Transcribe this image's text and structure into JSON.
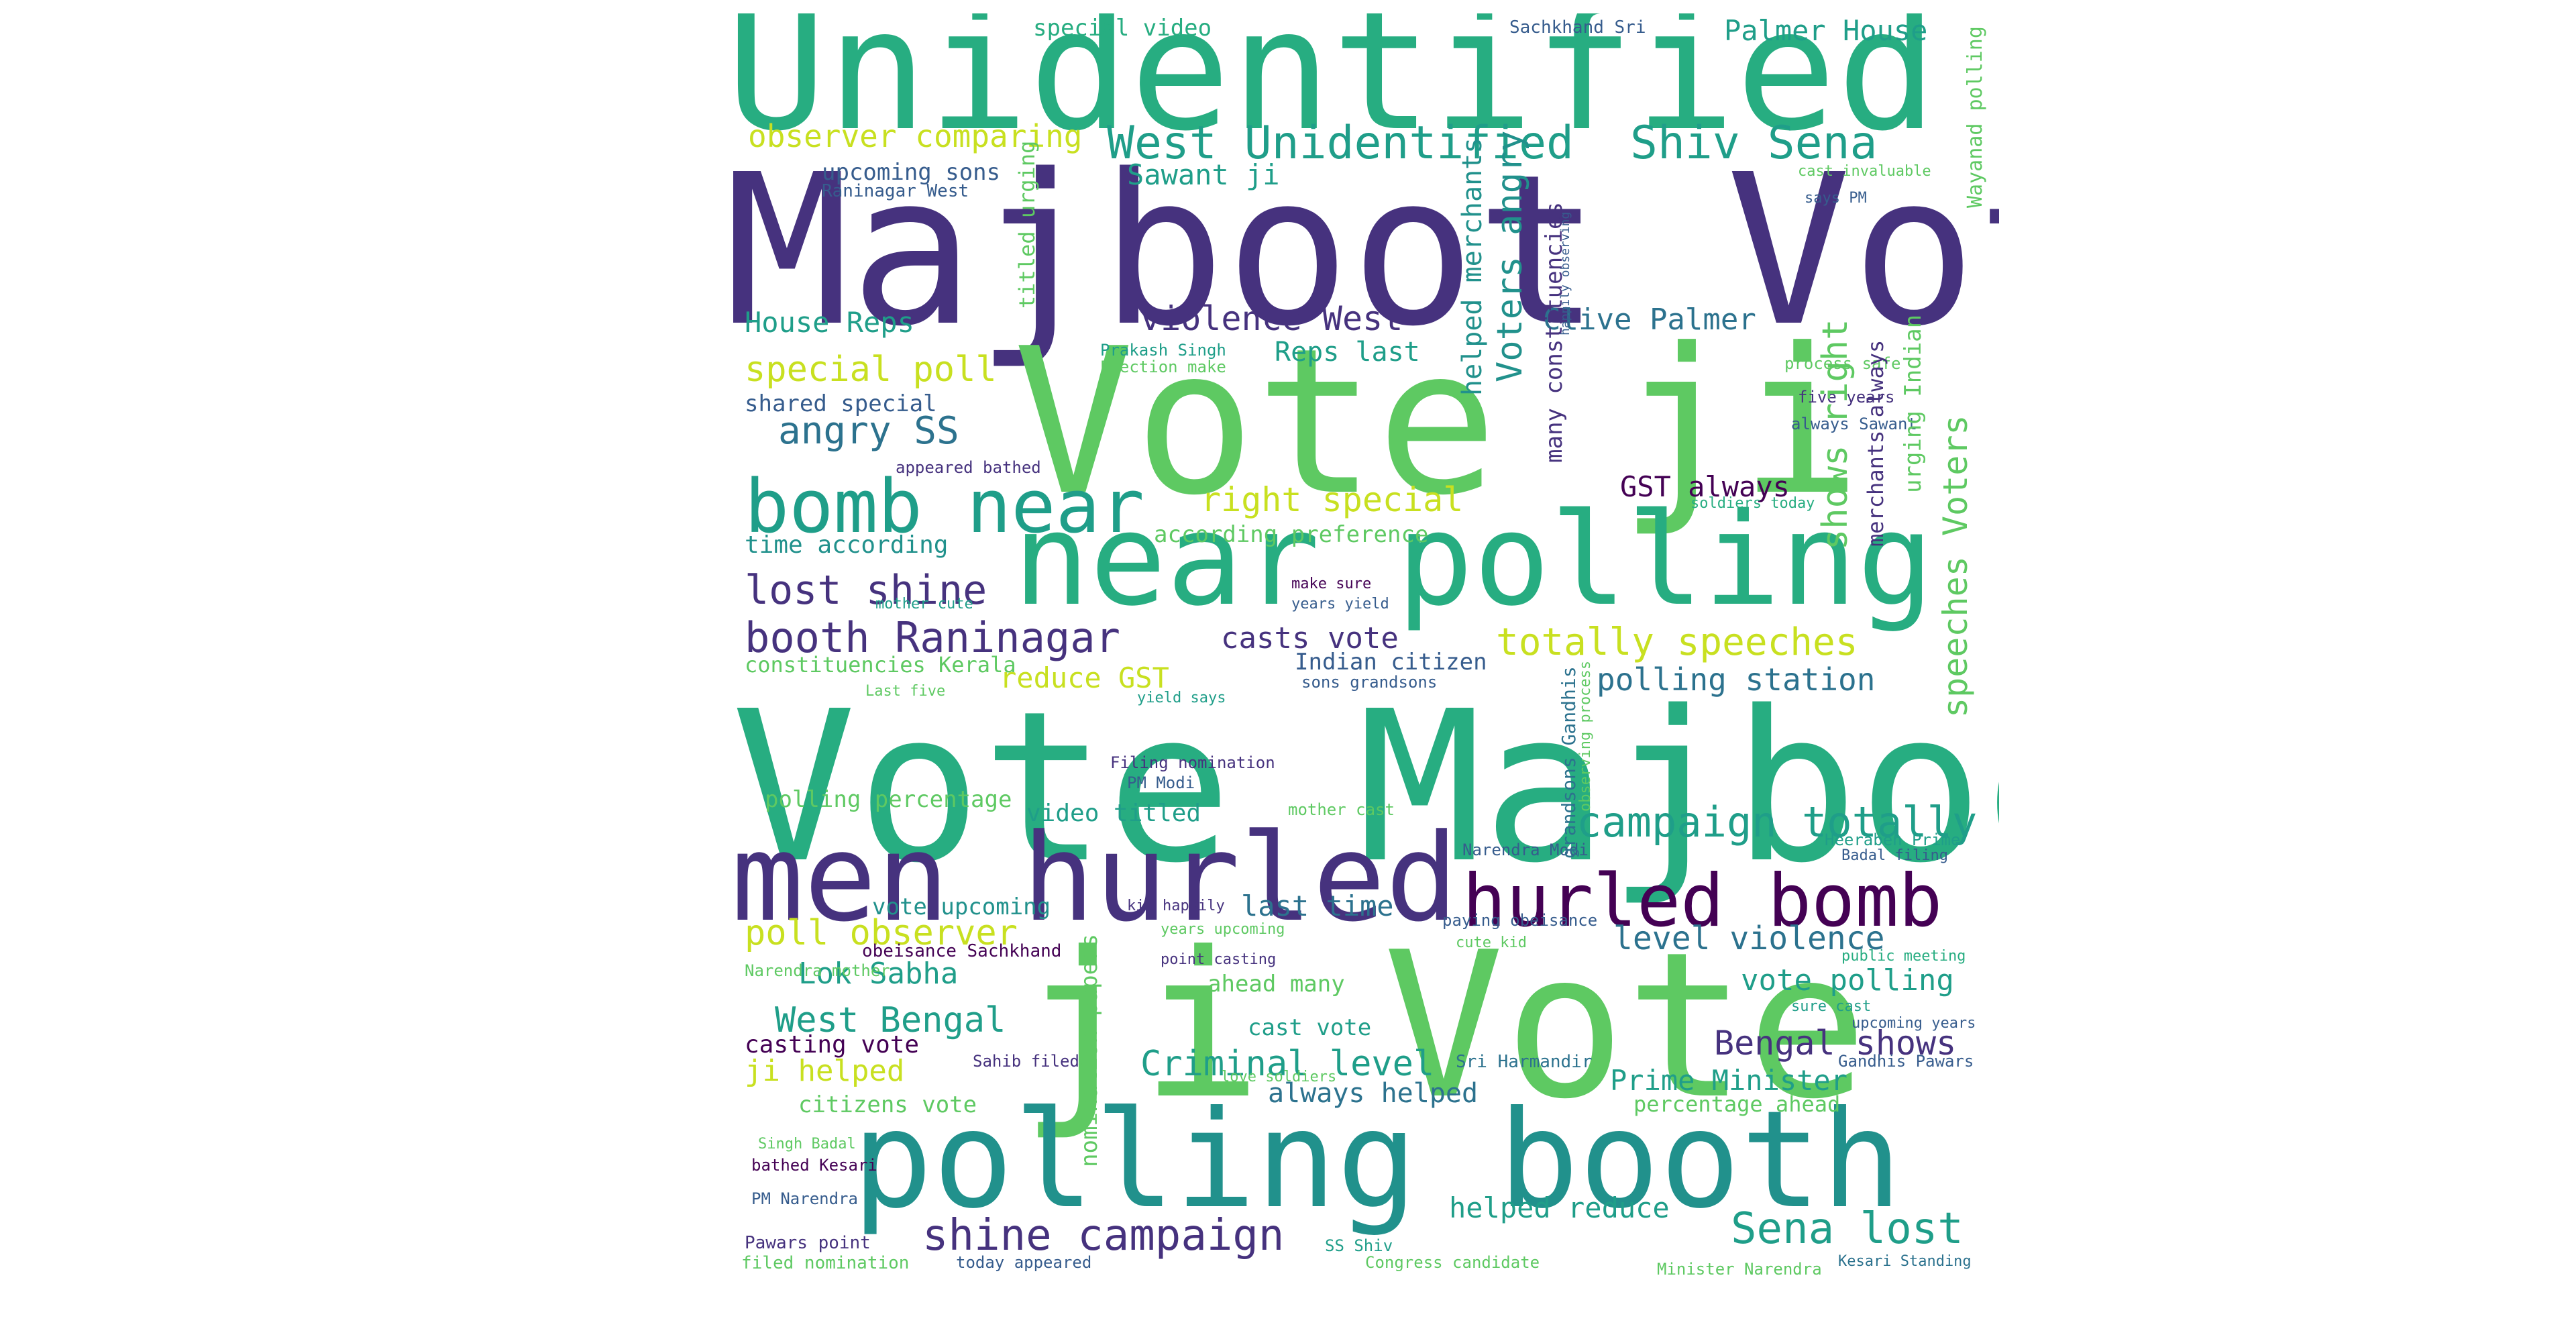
{
  "colors": {
    "dark_purple": "#46327e",
    "deep_purple": "#440154",
    "indigo": "#3b528b",
    "blue": "#365c8d",
    "teal_blue": "#2c728e",
    "teal": "#21918c",
    "sea_green": "#1f9e89",
    "green": "#27ad81",
    "light_green": "#5ec962",
    "lime": "#addc30",
    "yellow_green": "#c8e020"
  },
  "words": [
    {
      "text": "Unidentified men"
    },
    {
      "text": "Majboot Vote"
    },
    {
      "text": "Vote ji"
    },
    {
      "text": "near polling"
    },
    {
      "text": "Vote Majboot"
    },
    {
      "text": "men hurled"
    },
    {
      "text": "ji Vote"
    },
    {
      "text": "polling booth"
    },
    {
      "text": "bomb near"
    },
    {
      "text": "hurled bomb"
    },
    {
      "text": "West Unidentified"
    },
    {
      "text": "Shiv Sena"
    },
    {
      "text": "campaign totally"
    },
    {
      "text": "shine campaign"
    },
    {
      "text": "Sena lost"
    },
    {
      "text": "booth Raninagar"
    },
    {
      "text": "totally speeches"
    },
    {
      "text": "lost shine"
    },
    {
      "text": "special poll"
    },
    {
      "text": "angry SS"
    },
    {
      "text": "right special"
    },
    {
      "text": "violence West"
    },
    {
      "text": "polling station"
    },
    {
      "text": "Bengal shows"
    },
    {
      "text": "West Bengal"
    },
    {
      "text": "poll observer"
    },
    {
      "text": "level violence"
    },
    {
      "text": "Criminal level"
    },
    {
      "text": "observer comparing"
    },
    {
      "text": "Palmer House"
    },
    {
      "text": "Clive Palmer"
    },
    {
      "text": "GST always"
    },
    {
      "text": "House Reps"
    },
    {
      "text": "Sawant ji"
    },
    {
      "text": "Reps last"
    },
    {
      "text": "casts vote"
    },
    {
      "text": "reduce GST"
    },
    {
      "text": "last time"
    },
    {
      "text": "vote polling"
    },
    {
      "text": "Lok Sabha"
    },
    {
      "text": "ji helped"
    },
    {
      "text": "Prime Minister"
    },
    {
      "text": "always helped"
    },
    {
      "text": "helped reduce"
    },
    {
      "text": "Indian citizen"
    },
    {
      "text": "video titled"
    },
    {
      "text": "casting vote"
    },
    {
      "text": "citizens vote"
    },
    {
      "text": "time according"
    },
    {
      "text": "according preference"
    },
    {
      "text": "shared special"
    },
    {
      "text": "polling percentage"
    },
    {
      "text": "vote upcoming"
    },
    {
      "text": "cast vote"
    },
    {
      "text": "ahead many"
    },
    {
      "text": "percentage ahead"
    },
    {
      "text": "upcoming sons"
    },
    {
      "text": "special video"
    },
    {
      "text": "Sachkhand Sri"
    },
    {
      "text": "Raninagar West"
    },
    {
      "text": "constituencies Kerala"
    },
    {
      "text": "Prakash Singh"
    },
    {
      "text": "Election make"
    },
    {
      "text": "appeared bathed"
    },
    {
      "text": "make sure"
    },
    {
      "text": "years yield"
    },
    {
      "text": "mother cute"
    },
    {
      "text": "Last five"
    },
    {
      "text": "yield says"
    },
    {
      "text": "sons grandsons"
    },
    {
      "text": "Filing nomination"
    },
    {
      "text": "PM Modi"
    },
    {
      "text": "mother cast"
    },
    {
      "text": "process safe"
    },
    {
      "text": "five years"
    },
    {
      "text": "always Sawant"
    },
    {
      "text": "soldiers today"
    },
    {
      "text": "cast invaluable"
    },
    {
      "text": "says PM"
    },
    {
      "text": "Heeraben Prime"
    },
    {
      "text": "Badal filing"
    },
    {
      "text": "Narendra Modi"
    },
    {
      "text": "kid happily"
    },
    {
      "text": "paying obeisance"
    },
    {
      "text": "years upcoming"
    },
    {
      "text": "obeisance Sachkhand"
    },
    {
      "text": "cute kid"
    },
    {
      "text": "point casting"
    },
    {
      "text": "public meeting"
    },
    {
      "text": "Narendra mother"
    },
    {
      "text": "sure cast"
    },
    {
      "text": "upcoming years"
    },
    {
      "text": "Sahib filed"
    },
    {
      "text": "love soldiers"
    },
    {
      "text": "Sri Harmandir"
    },
    {
      "text": "Gandhis Pawars"
    },
    {
      "text": "Singh Badal"
    },
    {
      "text": "bathed Kesari"
    },
    {
      "text": "PM Narendra"
    },
    {
      "text": "Pawars point"
    },
    {
      "text": "SS Shiv"
    },
    {
      "text": "filed nomination"
    },
    {
      "text": "today appeared"
    },
    {
      "text": "Congress candidate"
    },
    {
      "text": "Minister Narendra"
    },
    {
      "text": "Kesari Standing"
    },
    {
      "text": "titled urging"
    },
    {
      "text": "helped merchants"
    },
    {
      "text": "Voters angry"
    },
    {
      "text": "many constituencies"
    },
    {
      "text": "happily observing"
    },
    {
      "text": "shows right"
    },
    {
      "text": "merchants always"
    },
    {
      "text": "urging Indian"
    },
    {
      "text": "speeches Voters"
    },
    {
      "text": "Wayanad polling"
    },
    {
      "text": "Harmandir Sahib"
    },
    {
      "text": "grandsons Gandhis"
    },
    {
      "text": "observing process"
    },
    {
      "text": "nomination papers"
    }
  ]
}
